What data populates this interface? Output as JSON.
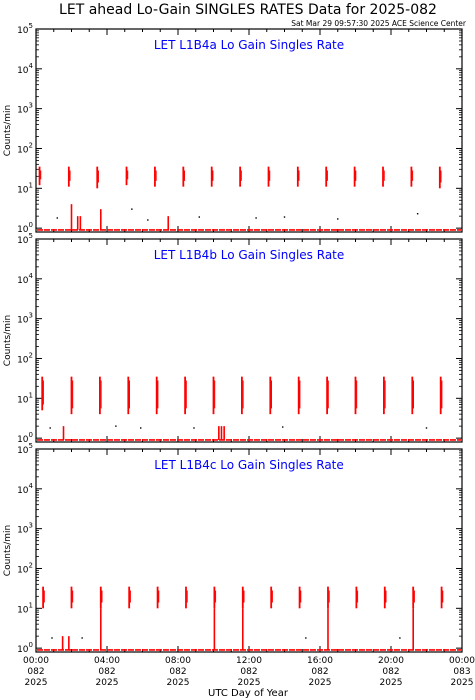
{
  "figure": {
    "title": "LET ahead Lo-Gain SINGLES RATES Data for 2025-082",
    "timestamp": "Sat Mar 29 09:57:30 2025 ACE Science Center",
    "xlabel": "UTC Day of Year"
  },
  "colors": {
    "data": "#ff0000",
    "panel_title": "#0000ff",
    "axes": "#000000",
    "background": "#ffffff"
  },
  "chart_data": [
    {
      "type": "scatter",
      "title": "LET L1B4a Lo Gain Singles Rate",
      "ylabel": "Counts/min",
      "yscale": "log",
      "ylim": [
        0.8,
        100000
      ],
      "xlim": [
        0,
        24
      ],
      "ytick_labels": [
        "10^0",
        "10^1",
        "10^2",
        "10^3",
        "10^4",
        "10^5"
      ],
      "xtick_labels": [
        {
          "time": "00:00",
          "doy": "082",
          "year": "2025"
        },
        {
          "time": "04:00",
          "doy": "082",
          "year": "2025"
        },
        {
          "time": "08:00",
          "doy": "082",
          "year": "2025"
        },
        {
          "time": "12:00",
          "doy": "082",
          "year": "2025"
        },
        {
          "time": "16:00",
          "doy": "082",
          "year": "2025"
        },
        {
          "time": "20:00",
          "doy": "082",
          "year": "2025"
        },
        {
          "time": "00:00",
          "doy": "083",
          "year": "2025"
        }
      ],
      "baseline_value": 0.9,
      "bursts": [
        {
          "x": 0.2,
          "y_high": 35,
          "y_low": 12
        },
        {
          "x": 1.85,
          "y_high": 35,
          "y_low": 11
        },
        {
          "x": 3.45,
          "y_high": 35,
          "y_low": 10
        },
        {
          "x": 5.1,
          "y_high": 35,
          "y_low": 12
        },
        {
          "x": 6.7,
          "y_high": 35,
          "y_low": 11
        },
        {
          "x": 8.3,
          "y_high": 35,
          "y_low": 11
        },
        {
          "x": 9.9,
          "y_high": 35,
          "y_low": 11
        },
        {
          "x": 11.5,
          "y_high": 35,
          "y_low": 11
        },
        {
          "x": 13.1,
          "y_high": 35,
          "y_low": 11
        },
        {
          "x": 14.75,
          "y_high": 35,
          "y_low": 11
        },
        {
          "x": 16.35,
          "y_high": 35,
          "y_low": 11
        },
        {
          "x": 17.95,
          "y_high": 35,
          "y_low": 11
        },
        {
          "x": 19.55,
          "y_high": 35,
          "y_low": 11
        },
        {
          "x": 21.15,
          "y_high": 35,
          "y_low": 11
        },
        {
          "x": 22.75,
          "y_high": 35,
          "y_low": 10
        }
      ],
      "drops": [
        {
          "x": 2.0,
          "y_top": 4
        },
        {
          "x": 3.65,
          "y_top": 3
        },
        {
          "x": 2.35,
          "y_top": 2
        },
        {
          "x": 2.5,
          "y_top": 2
        },
        {
          "x": 7.45,
          "y_top": 2
        }
      ],
      "scatter": [
        {
          "x": 1.2,
          "y": 1.8
        },
        {
          "x": 5.4,
          "y": 3.0
        },
        {
          "x": 9.2,
          "y": 1.9
        },
        {
          "x": 12.4,
          "y": 1.8
        },
        {
          "x": 21.5,
          "y": 2.3
        },
        {
          "x": 6.3,
          "y": 1.6
        },
        {
          "x": 17.0,
          "y": 1.7
        },
        {
          "x": 14.0,
          "y": 1.9
        }
      ]
    },
    {
      "type": "scatter",
      "title": "LET L1B4b Lo Gain Singles Rate",
      "ylabel": "Counts/min",
      "yscale": "log",
      "ylim": [
        0.8,
        100000
      ],
      "xlim": [
        0,
        24
      ],
      "ytick_labels": [
        "10^0",
        "10^1",
        "10^2",
        "10^3",
        "10^4",
        "10^5"
      ],
      "xtick_labels": [
        {
          "time": "00:00",
          "doy": "082",
          "year": "2025"
        },
        {
          "time": "04:00",
          "doy": "082",
          "year": "2025"
        },
        {
          "time": "08:00",
          "doy": "082",
          "year": "2025"
        },
        {
          "time": "12:00",
          "doy": "082",
          "year": "2025"
        },
        {
          "time": "16:00",
          "doy": "082",
          "year": "2025"
        },
        {
          "time": "20:00",
          "doy": "082",
          "year": "2025"
        },
        {
          "time": "00:00",
          "doy": "083",
          "year": "2025"
        }
      ],
      "baseline_value": 0.9,
      "bursts": [
        {
          "x": 0.35,
          "y_high": 35,
          "y_low": 5
        },
        {
          "x": 2.0,
          "y_high": 35,
          "y_low": 4
        },
        {
          "x": 3.6,
          "y_high": 35,
          "y_low": 4
        },
        {
          "x": 5.2,
          "y_high": 35,
          "y_low": 4
        },
        {
          "x": 6.8,
          "y_high": 35,
          "y_low": 4
        },
        {
          "x": 8.4,
          "y_high": 35,
          "y_low": 4
        },
        {
          "x": 10.0,
          "y_high": 35,
          "y_low": 4
        },
        {
          "x": 11.6,
          "y_high": 35,
          "y_low": 4
        },
        {
          "x": 13.2,
          "y_high": 35,
          "y_low": 4
        },
        {
          "x": 14.8,
          "y_high": 35,
          "y_low": 4
        },
        {
          "x": 16.4,
          "y_high": 35,
          "y_low": 4
        },
        {
          "x": 18.0,
          "y_high": 35,
          "y_low": 4
        },
        {
          "x": 19.6,
          "y_high": 35,
          "y_low": 4
        },
        {
          "x": 21.2,
          "y_high": 35,
          "y_low": 4
        },
        {
          "x": 22.8,
          "y_high": 35,
          "y_low": 4
        }
      ],
      "drops": [
        {
          "x": 1.55,
          "y_top": 2
        },
        {
          "x": 10.3,
          "y_top": 2
        },
        {
          "x": 10.45,
          "y_top": 2
        },
        {
          "x": 10.6,
          "y_top": 2
        }
      ],
      "scatter": [
        {
          "x": 0.8,
          "y": 1.8
        },
        {
          "x": 4.5,
          "y": 2.0
        },
        {
          "x": 5.9,
          "y": 1.8
        },
        {
          "x": 8.9,
          "y": 1.8
        },
        {
          "x": 13.9,
          "y": 1.9
        },
        {
          "x": 22.0,
          "y": 1.8
        }
      ]
    },
    {
      "type": "scatter",
      "title": "LET L1B4c Lo Gain Singles Rate",
      "ylabel": "Counts/min",
      "yscale": "log",
      "ylim": [
        0.8,
        100000
      ],
      "xlim": [
        0,
        24
      ],
      "ytick_labels": [
        "10^0",
        "10^1",
        "10^2",
        "10^3",
        "10^4",
        "10^5"
      ],
      "xtick_labels": [
        {
          "time": "00:00",
          "doy": "082",
          "year": "2025"
        },
        {
          "time": "04:00",
          "doy": "082",
          "year": "2025"
        },
        {
          "time": "08:00",
          "doy": "082",
          "year": "2025"
        },
        {
          "time": "12:00",
          "doy": "082",
          "year": "2025"
        },
        {
          "time": "16:00",
          "doy": "082",
          "year": "2025"
        },
        {
          "time": "20:00",
          "doy": "082",
          "year": "2025"
        },
        {
          "time": "00:00",
          "doy": "083",
          "year": "2025"
        }
      ],
      "baseline_value": 0.9,
      "bursts": [
        {
          "x": 0.4,
          "y_high": 35,
          "y_low": 10
        },
        {
          "x": 2.0,
          "y_high": 35,
          "y_low": 10
        },
        {
          "x": 3.65,
          "y_high": 35,
          "y_low": 10
        },
        {
          "x": 5.25,
          "y_high": 35,
          "y_low": 10
        },
        {
          "x": 6.85,
          "y_high": 35,
          "y_low": 10
        },
        {
          "x": 8.45,
          "y_high": 35,
          "y_low": 10
        },
        {
          "x": 10.05,
          "y_high": 35,
          "y_low": 10
        },
        {
          "x": 11.65,
          "y_high": 35,
          "y_low": 10
        },
        {
          "x": 13.25,
          "y_high": 35,
          "y_low": 10
        },
        {
          "x": 14.85,
          "y_high": 35,
          "y_low": 10
        },
        {
          "x": 16.45,
          "y_high": 35,
          "y_low": 10
        },
        {
          "x": 18.05,
          "y_high": 35,
          "y_low": 10
        },
        {
          "x": 19.65,
          "y_high": 35,
          "y_low": 10
        },
        {
          "x": 21.25,
          "y_high": 35,
          "y_low": 10
        },
        {
          "x": 22.85,
          "y_high": 35,
          "y_low": 10
        }
      ],
      "drops": [
        {
          "x": 1.5,
          "y_top": 2
        },
        {
          "x": 1.85,
          "y_top": 2
        },
        {
          "x": 3.65,
          "y_top": 10
        },
        {
          "x": 10.05,
          "y_top": 10
        },
        {
          "x": 11.65,
          "y_top": 10
        },
        {
          "x": 16.45,
          "y_top": 10
        },
        {
          "x": 21.25,
          "y_top": 10
        }
      ],
      "scatter": [
        {
          "x": 0.9,
          "y": 1.8
        },
        {
          "x": 2.6,
          "y": 1.8
        },
        {
          "x": 15.2,
          "y": 1.8
        },
        {
          "x": 20.5,
          "y": 1.8
        }
      ]
    }
  ]
}
